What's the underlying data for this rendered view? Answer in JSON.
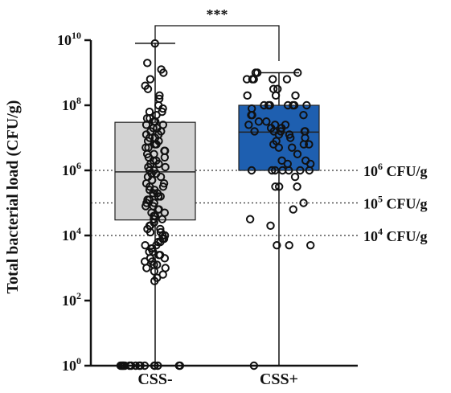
{
  "chart_data": {
    "type": "box",
    "ylabel": "Total bacterial load  (CFU/g)",
    "yscale": "log",
    "ylim": [
      1,
      10000000000
    ],
    "y_ticks": [
      {
        "base": "10",
        "exp": "0",
        "value": 1
      },
      {
        "base": "10",
        "exp": "2",
        "value": 100
      },
      {
        "base": "10",
        "exp": "4",
        "value": 10000
      },
      {
        "base": "10",
        "exp": "6",
        "value": 1000000
      },
      {
        "base": "10",
        "exp": "8",
        "value": 100000000
      },
      {
        "base": "10",
        "exp": "10",
        "value": 10000000000
      }
    ],
    "categories": [
      "CSS-",
      "CSS+"
    ],
    "boxes": [
      {
        "name": "CSS-",
        "fill": "#d3d3d3",
        "whisker_low": 1,
        "q1": 30000,
        "median": 900000,
        "q3": 30000000,
        "whisker_high": 8000000000,
        "points_log10": [
          9.9,
          7.7,
          7.6,
          7.6,
          7.5,
          7.5,
          7.4,
          7.4,
          7.3,
          7.3,
          7.2,
          7.2,
          7.1,
          7.1,
          7.0,
          7.0,
          6.9,
          6.9,
          6.8,
          6.8,
          6.7,
          6.7,
          6.6,
          6.6,
          6.5,
          6.5,
          6.4,
          6.4,
          6.3,
          6.3,
          6.2,
          6.2,
          6.1,
          6.1,
          6.0,
          6.0,
          5.9,
          5.9,
          5.8,
          5.8,
          5.7,
          5.7,
          5.6,
          5.6,
          5.5,
          5.5,
          5.4,
          5.4,
          5.3,
          5.3,
          5.2,
          5.2,
          5.1,
          5.1,
          5.0,
          5.0,
          4.9,
          4.9,
          4.8,
          4.8,
          4.7,
          4.7,
          4.6,
          4.6,
          4.5,
          4.5,
          4.4,
          4.4,
          4.3,
          4.3,
          4.2,
          4.2,
          4.1,
          4.1,
          4.0,
          4.0,
          3.9,
          3.9,
          3.8,
          3.8,
          3.7,
          3.7,
          3.6,
          3.6,
          3.5,
          3.5,
          3.4,
          3.4,
          3.3,
          3.3,
          3.2,
          3.2,
          3.1,
          3.1,
          3.0,
          3.0,
          2.9,
          2.8,
          2.7,
          2.6,
          9.3,
          9.1,
          9.0,
          8.8,
          8.6,
          8.5,
          8.3,
          8.2,
          8.0,
          7.9,
          7.8,
          7.8,
          0,
          0,
          0,
          0,
          0,
          0,
          0,
          0,
          0,
          0,
          0,
          0,
          0,
          0,
          0,
          0
        ]
      },
      {
        "name": "CSS+",
        "fill": "#1e5fb0",
        "whisker_low": 1,
        "q1": 1000000,
        "median": 15000000,
        "q3": 100000000,
        "whisker_high": 1000000000,
        "points_log10": [
          9.0,
          9.0,
          9.0,
          8.8,
          8.8,
          8.8,
          8.8,
          8.8,
          8.5,
          8.5,
          8.3,
          8.3,
          8.3,
          8.0,
          8.0,
          8.0,
          8.0,
          8.0,
          8.0,
          8.0,
          7.9,
          7.7,
          7.7,
          7.7,
          7.5,
          7.5,
          7.4,
          7.4,
          7.4,
          7.3,
          7.3,
          7.2,
          7.2,
          7.2,
          7.2,
          7.2,
          7.1,
          7.1,
          7.0,
          7.0,
          6.9,
          6.8,
          6.8,
          6.8,
          6.7,
          6.7,
          6.5,
          6.3,
          6.3,
          6.2,
          6.2,
          6.0,
          6.0,
          6.0,
          6.0,
          6.0,
          6.0,
          6.0,
          5.8,
          5.5,
          5.5,
          5.5,
          5.0,
          4.8,
          4.5,
          4.3,
          3.7,
          3.7,
          3.7,
          0
        ]
      }
    ],
    "reference_lines": [
      {
        "value": 1000000,
        "base": "10",
        "exp": "6",
        "unit": "CFU/g"
      },
      {
        "value": 100000,
        "base": "10",
        "exp": "5",
        "unit": "CFU/g"
      },
      {
        "value": 10000,
        "base": "10",
        "exp": "4",
        "unit": "CFU/g"
      }
    ],
    "significance": "***",
    "colors": {
      "css_minus_box": "#d3d3d3",
      "css_plus_box": "#1e5fb0",
      "points": "#111111"
    }
  }
}
